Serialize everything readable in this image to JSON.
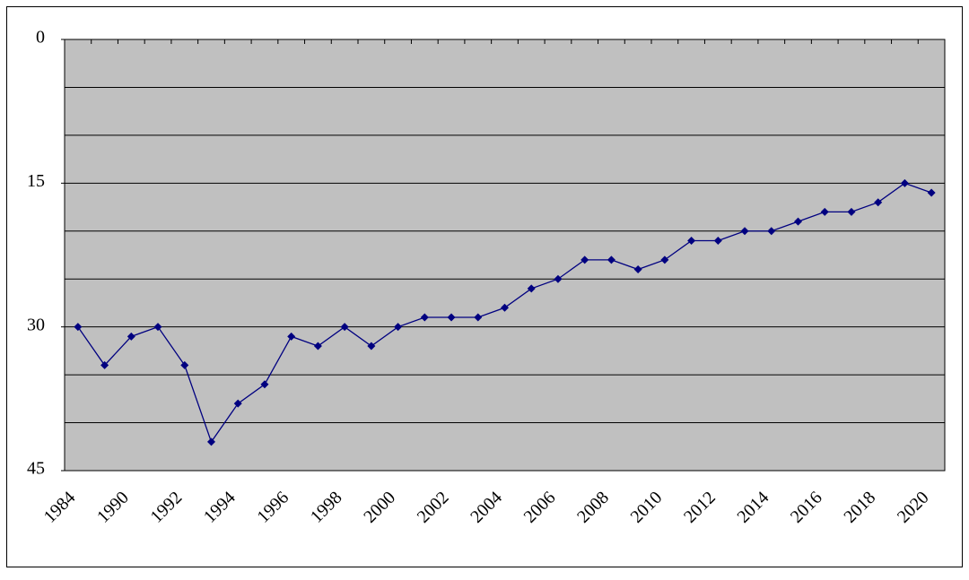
{
  "chart_data": {
    "type": "line",
    "categories": [
      "1984",
      null,
      "1990",
      null,
      "1992",
      null,
      "1994",
      null,
      "1996",
      null,
      "1998",
      null,
      "2000",
      null,
      "2002",
      null,
      "2004",
      null,
      "2006",
      null,
      "2008",
      null,
      "2010",
      null,
      "2012",
      null,
      "2014",
      null,
      "2016",
      null,
      "2018",
      null,
      "2020"
    ],
    "values": [
      30,
      34,
      31,
      30,
      34,
      42,
      38,
      36,
      31,
      32,
      30,
      32,
      30,
      29,
      29,
      29,
      28,
      26,
      25,
      23,
      23,
      24,
      23,
      21,
      21,
      20,
      20,
      19,
      18,
      18,
      17,
      15,
      16
    ],
    "color": "#000080",
    "ylim": [
      45,
      0
    ],
    "yticks": [
      0,
      15,
      30,
      45
    ],
    "grid_lines": [
      0,
      5,
      10,
      15,
      20,
      25,
      30,
      35,
      40,
      45
    ],
    "grid": true
  }
}
